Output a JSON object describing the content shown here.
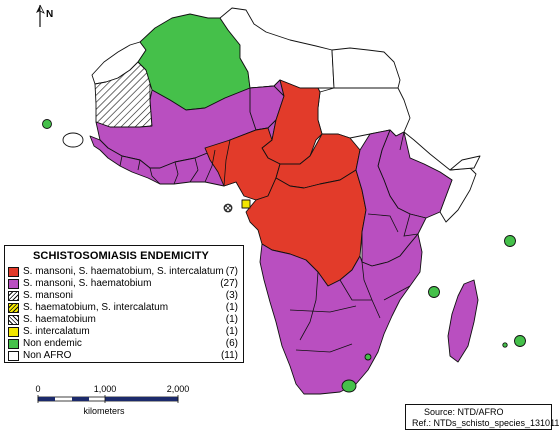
{
  "map": {
    "north_label": "N",
    "legend": {
      "title": "SCHISTOSOMIASIS ENDEMICITY",
      "items": [
        {
          "label": "S. mansoni, S. haematobium, S. intercalatum",
          "count": "(7)",
          "color": "#e23b2a",
          "pattern": "solid"
        },
        {
          "label": "S. mansoni, S. haematobium",
          "count": "(27)",
          "color": "#b94fc0",
          "pattern": "solid"
        },
        {
          "label": "S. mansoni",
          "count": "(3)",
          "color": "#ffffff",
          "pattern": "hatch"
        },
        {
          "label": "S. haematobium, S. intercalatum",
          "count": "(1)",
          "color": "#f2e600",
          "pattern": "hatch"
        },
        {
          "label": "S. haematobium",
          "count": "(1)",
          "color": "#ffffff",
          "pattern": "crosshatch"
        },
        {
          "label": "S. intercalatum",
          "count": "(1)",
          "color": "#f2e600",
          "pattern": "solid"
        },
        {
          "label": "Non endemic",
          "count": "(6)",
          "color": "#45c04a",
          "pattern": "solid"
        },
        {
          "label": "Non AFRO",
          "count": "(11)",
          "color": "#ffffff",
          "pattern": "solid"
        }
      ]
    },
    "scale": {
      "ticks": [
        "0",
        "1,000",
        "2,000"
      ],
      "unit": "kilometers"
    },
    "source": {
      "line1": "Source: NTD/AFRO",
      "line2": "Ref.: NTDs_schisto_species_131011"
    },
    "colors": {
      "red": "#e23b2a",
      "purple": "#b94fc0",
      "green": "#45c04a",
      "yellow": "#f2e600",
      "white": "#ffffff",
      "outline": "#111111"
    }
  }
}
